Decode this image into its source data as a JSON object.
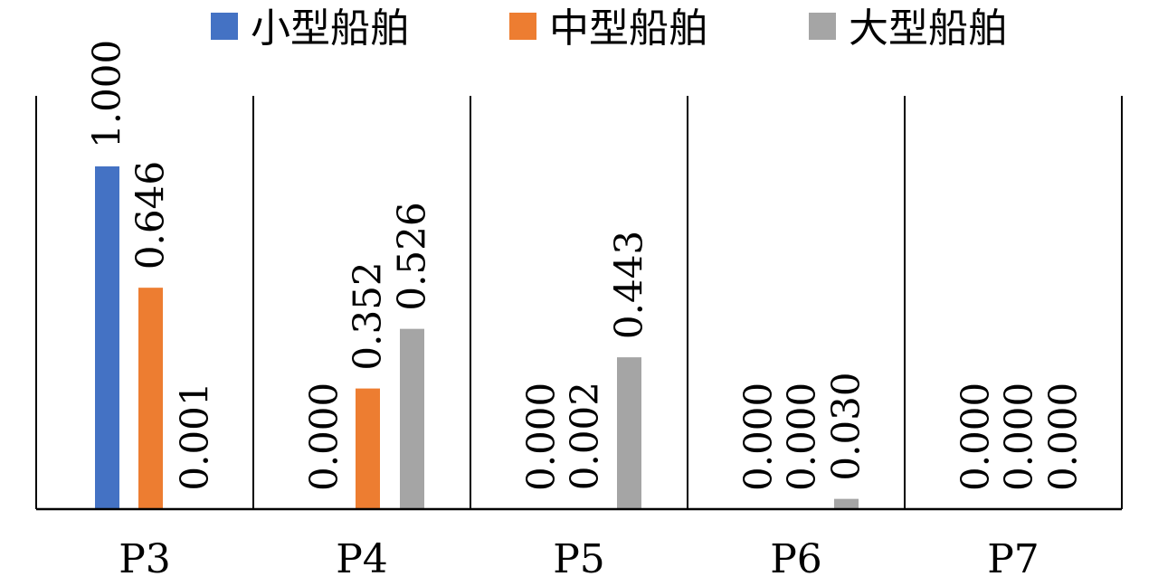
{
  "chart_data": {
    "type": "bar",
    "categories": [
      "P3",
      "P4",
      "P5",
      "P6",
      "P7"
    ],
    "series": [
      {
        "name": "小型船舶",
        "color": "#4472C4",
        "values": [
          1.0,
          0.0,
          0.0,
          0.0,
          0.0
        ],
        "labels": [
          "1.000",
          "0.000",
          "0.000",
          "0.000",
          "0.000"
        ]
      },
      {
        "name": "中型船舶",
        "color": "#ED7D31",
        "values": [
          0.646,
          0.352,
          0.002,
          0.0,
          0.0
        ],
        "labels": [
          "0.646",
          "0.352",
          "0.002",
          "0.000",
          "0.000"
        ]
      },
      {
        "name": "大型船舶",
        "color": "#A5A5A5",
        "values": [
          0.001,
          0.526,
          0.443,
          0.03,
          0.0
        ],
        "labels": [
          "0.001",
          "0.526",
          "0.443",
          "0.030",
          "0.000"
        ]
      }
    ],
    "ylim": [
      0,
      1.2
    ],
    "legend": "top",
    "grid": false,
    "category_dividers": true
  }
}
